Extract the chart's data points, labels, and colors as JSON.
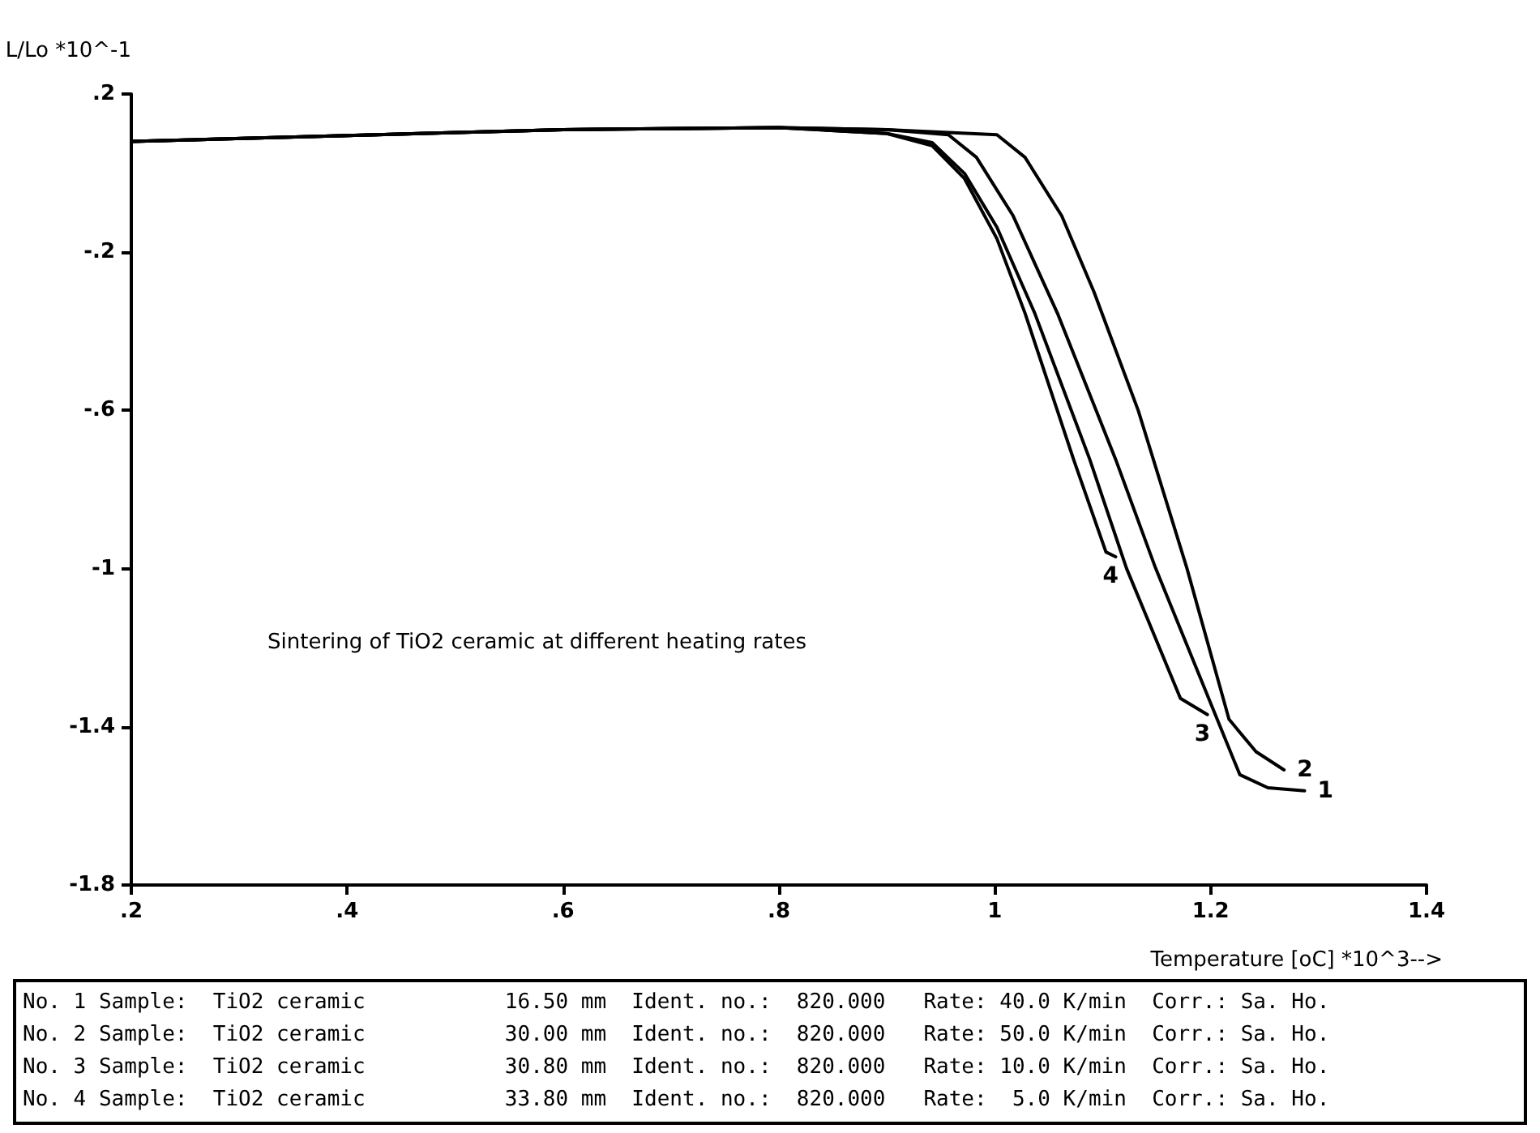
{
  "chart_data": {
    "type": "line",
    "xlabel": "Temperature [oC] *10^3-->",
    "ylabel": "L/Lo *10^-1",
    "xlim": [
      0.2,
      1.4
    ],
    "xticks": [
      {
        "value": 0.2,
        "label": ".2"
      },
      {
        "value": 0.4,
        "label": ".4"
      },
      {
        "value": 0.6,
        "label": ".6"
      },
      {
        "value": 0.8,
        "label": ".8"
      },
      1,
      1.2,
      1.4
    ],
    "ylim": [
      -1.8,
      0.2
    ],
    "yticks": [
      {
        "value": -1.8,
        "label": "-1.8"
      },
      {
        "value": -1.4,
        "label": "-1.4"
      },
      -1,
      {
        "value": -0.6,
        "label": "-.6"
      },
      {
        "value": -0.2,
        "label": "-.2"
      },
      {
        "value": 0.2,
        "label": ".2"
      }
    ],
    "grid": false,
    "legend": false,
    "marker": "none",
    "line_style": "solid",
    "series": [
      {
        "name": "1",
        "color": "#000000",
        "x": [
          0.2,
          0.4,
          0.6,
          0.8,
          0.9,
          0.957,
          0.983,
          1.017,
          1.058,
          1.112,
          1.149,
          1.227,
          1.253,
          1.287
        ],
        "values": [
          0.08,
          0.095,
          0.11,
          0.115,
          0.11,
          0.097,
          0.04,
          -0.108,
          -0.354,
          -0.724,
          -0.999,
          -1.521,
          -1.554,
          -1.562
        ]
      },
      {
        "name": "2",
        "color": "#000000",
        "x": [
          0.2,
          0.4,
          0.6,
          0.8,
          0.9,
          1.002,
          1.028,
          1.062,
          1.092,
          1.133,
          1.178,
          1.217,
          1.242,
          1.268
        ],
        "values": [
          0.08,
          0.095,
          0.11,
          0.115,
          0.11,
          0.097,
          0.04,
          -0.108,
          -0.301,
          -0.601,
          -0.999,
          -1.381,
          -1.463,
          -1.509
        ]
      },
      {
        "name": "3",
        "color": "#000000",
        "x": [
          0.2,
          0.4,
          0.6,
          0.8,
          0.9,
          0.942,
          0.972,
          1.002,
          1.037,
          1.088,
          1.122,
          1.172,
          1.197
        ],
        "values": [
          0.08,
          0.095,
          0.11,
          0.115,
          0.1,
          0.077,
          -0.001,
          -0.137,
          -0.354,
          -0.724,
          -0.999,
          -1.328,
          -1.369
        ]
      },
      {
        "name": "4",
        "color": "#000000",
        "x": [
          0.2,
          0.4,
          0.6,
          0.8,
          0.9,
          0.942,
          0.972,
          1.002,
          1.028,
          1.073,
          1.103,
          1.112
        ],
        "values": [
          0.08,
          0.095,
          0.11,
          0.115,
          0.1,
          0.069,
          -0.014,
          -0.166,
          -0.354,
          -0.724,
          -0.958,
          -0.97
        ]
      }
    ],
    "annotations": [
      "Sintering of TiO2 ceramic at different heating rates",
      "No. 1 Sample:  TiO2 ceramic           16.50 mm  Ident. no.:  820.000   Rate: 40.0 K/min  Corr.: Sa. Ho.",
      "No. 2 Sample:  TiO2 ceramic           30.00 mm  Ident. no.:  820.000   Rate: 50.0 K/min  Corr.: Sa. Ho.",
      "No. 3 Sample:  TiO2 ceramic           30.80 mm  Ident. no.:  820.000   Rate: 10.0 K/min  Corr.: Sa. Ho.",
      "No. 4 Sample:  TiO2 ceramic           33.80 mm  Ident. no.:  820.000   Rate:  5.0 K/min  Corr.: Sa. Ho."
    ]
  }
}
